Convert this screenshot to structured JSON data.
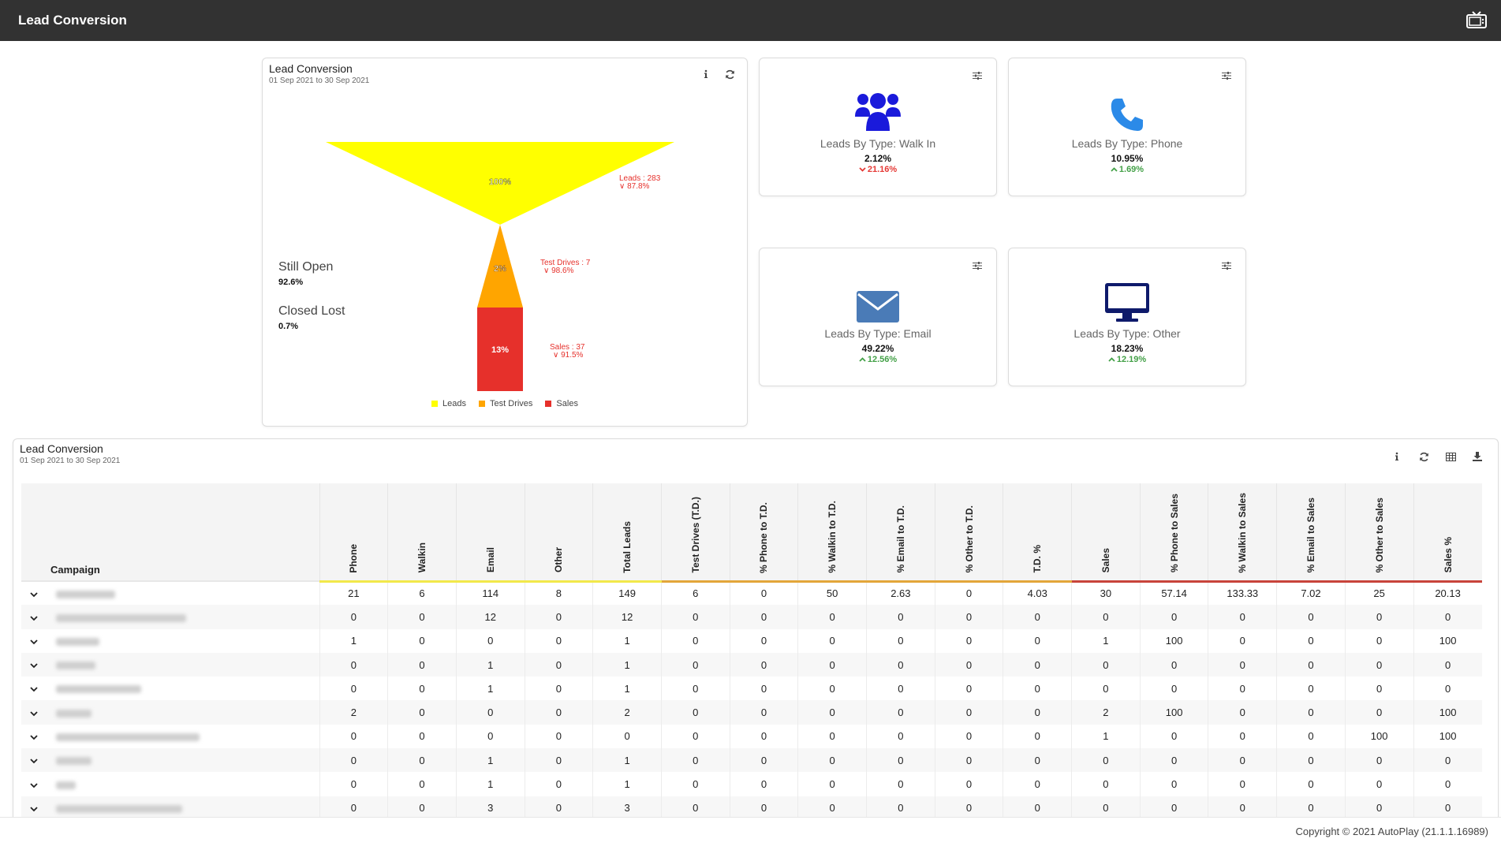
{
  "app": {
    "title": "Lead Conversion"
  },
  "funnel": {
    "title": "Lead Conversion",
    "date_range": "01 Sep 2021 to 30 Sep 2021",
    "stages": [
      {
        "name": "Leads",
        "pct": "100%",
        "label": "Leads : 283",
        "sub": "∨ 87.8%",
        "color": "#ffff00"
      },
      {
        "name": "Test Drives",
        "pct": "2%",
        "label": "Test Drives : 7",
        "sub": "∨ 98.6%",
        "color": "#ffa500"
      },
      {
        "name": "Sales",
        "pct": "13%",
        "label": "Sales : 37",
        "sub": "∨ 91.5%",
        "color": "#e6302b"
      }
    ],
    "still_open_label": "Still Open",
    "still_open_value": "92.6%",
    "closed_lost_label": "Closed Lost",
    "closed_lost_value": "0.7%"
  },
  "kpis": [
    {
      "label": "Leads By Type: Walk In",
      "value": "2.12%",
      "change": "21.16%",
      "direction": "down",
      "icon": "users-icon",
      "color": "#1a1adb"
    },
    {
      "label": "Leads By Type: Phone",
      "value": "10.95%",
      "change": "1.69%",
      "direction": "up",
      "icon": "phone-icon",
      "color": "#2b8ae8"
    },
    {
      "label": "Leads By Type: Email",
      "value": "49.22%",
      "change": "12.56%",
      "direction": "up",
      "icon": "envelope-icon",
      "color": "#4a7bb7"
    },
    {
      "label": "Leads By Type: Other",
      "value": "18.23%",
      "change": "12.19%",
      "direction": "up",
      "icon": "monitor-icon",
      "color": "#0e1a6b"
    }
  ],
  "table": {
    "title": "Lead Conversion",
    "date_range": "01 Sep 2021 to 30 Sep 2021",
    "campaign_header": "Campaign",
    "columns": [
      "Phone",
      "Walkin",
      "Email",
      "Other",
      "Total Leads",
      "Test Drives (T.D.)",
      "% Phone to T.D.",
      "% Walkin to T.D.",
      "% Email to T.D.",
      "% Other to T.D.",
      "T.D. %",
      "Sales",
      "% Phone to Sales",
      "% Walkin to Sales",
      "% Email to Sales",
      "% Other to Sales",
      "Sales %"
    ],
    "rows": [
      {
        "name": "",
        "values": [
          "21",
          "6",
          "114",
          "8",
          "149",
          "6",
          "0",
          "50",
          "2.63",
          "0",
          "4.03",
          "30",
          "57.14",
          "133.33",
          "7.02",
          "25",
          "20.13"
        ]
      },
      {
        "name": "",
        "values": [
          "0",
          "0",
          "12",
          "0",
          "12",
          "0",
          "0",
          "0",
          "0",
          "0",
          "0",
          "0",
          "0",
          "0",
          "0",
          "0",
          "0"
        ]
      },
      {
        "name": "",
        "values": [
          "1",
          "0",
          "0",
          "0",
          "1",
          "0",
          "0",
          "0",
          "0",
          "0",
          "0",
          "1",
          "100",
          "0",
          "0",
          "0",
          "100"
        ]
      },
      {
        "name": "",
        "values": [
          "0",
          "0",
          "1",
          "0",
          "1",
          "0",
          "0",
          "0",
          "0",
          "0",
          "0",
          "0",
          "0",
          "0",
          "0",
          "0",
          "0"
        ]
      },
      {
        "name": "",
        "values": [
          "0",
          "0",
          "1",
          "0",
          "1",
          "0",
          "0",
          "0",
          "0",
          "0",
          "0",
          "0",
          "0",
          "0",
          "0",
          "0",
          "0"
        ]
      },
      {
        "name": "",
        "values": [
          "2",
          "0",
          "0",
          "0",
          "2",
          "0",
          "0",
          "0",
          "0",
          "0",
          "0",
          "2",
          "100",
          "0",
          "0",
          "0",
          "100"
        ]
      },
      {
        "name": "",
        "values": [
          "0",
          "0",
          "0",
          "0",
          "0",
          "0",
          "0",
          "0",
          "0",
          "0",
          "0",
          "1",
          "0",
          "0",
          "0",
          "100",
          "100"
        ]
      },
      {
        "name": "",
        "values": [
          "0",
          "0",
          "1",
          "0",
          "1",
          "0",
          "0",
          "0",
          "0",
          "0",
          "0",
          "0",
          "0",
          "0",
          "0",
          "0",
          "0"
        ]
      },
      {
        "name": "",
        "values": [
          "0",
          "0",
          "1",
          "0",
          "1",
          "0",
          "0",
          "0",
          "0",
          "0",
          "0",
          "0",
          "0",
          "0",
          "0",
          "0",
          "0"
        ]
      },
      {
        "name": "",
        "values": [
          "0",
          "0",
          "3",
          "0",
          "3",
          "0",
          "0",
          "0",
          "0",
          "0",
          "0",
          "0",
          "0",
          "0",
          "0",
          "0",
          "0"
        ]
      }
    ]
  },
  "footer": {
    "copyright": "Copyright © 2021 AutoPlay (21.1.1.16989)"
  }
}
